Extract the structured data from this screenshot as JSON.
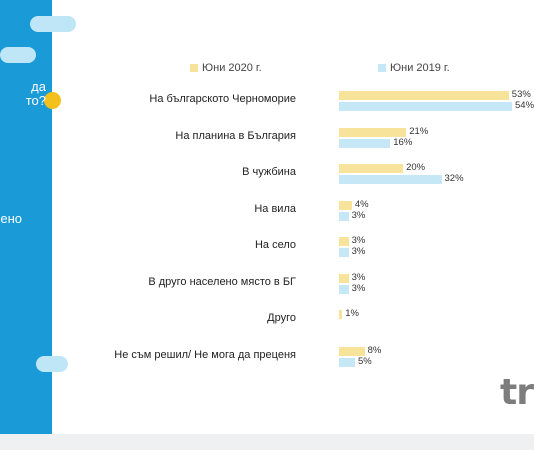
{
  "sidebar": {
    "lines": [
      "да",
      "то?",
      "лено"
    ],
    "color": "#1a9ad6"
  },
  "logo": {
    "text": "tre"
  },
  "chart_data": {
    "type": "bar",
    "orientation": "horizontal",
    "categories": [
      "На българското Черноморие",
      "На планина в България",
      "В чужбина",
      "На вила",
      "На село",
      "В друго населено място в БГ",
      "Друго",
      "Не съм решил/ Не мога да преценя"
    ],
    "series": [
      {
        "name": "Юни 2020 г.",
        "color": "#f8e39a",
        "values": [
          53,
          21,
          20,
          4,
          3,
          3,
          1,
          8
        ]
      },
      {
        "name": "Юни 2019 г.",
        "color": "#c6e8f6",
        "values": [
          54,
          16,
          32,
          3,
          3,
          3,
          null,
          5
        ]
      }
    ],
    "value_suffix": "%",
    "xlim": [
      0,
      54
    ],
    "legend": "top",
    "grid": false
  }
}
